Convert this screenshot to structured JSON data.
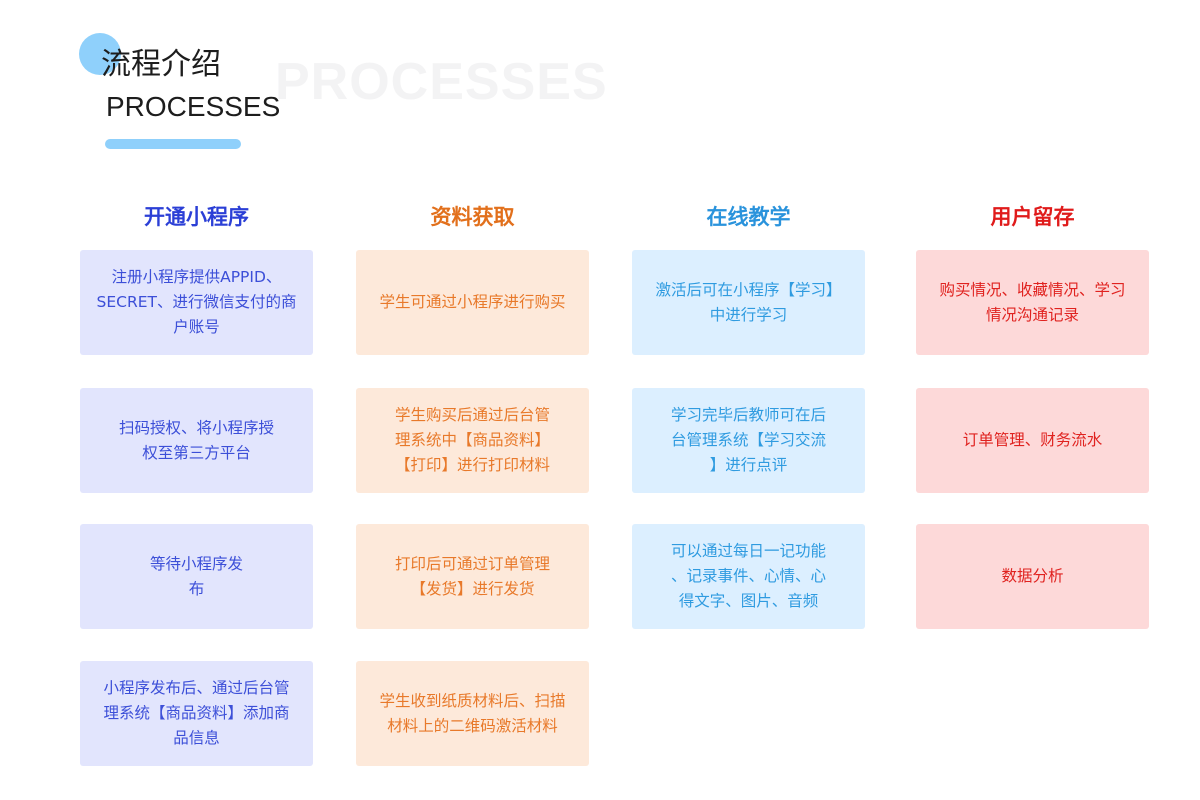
{
  "header": {
    "title_cn": "流程介绍",
    "title_en": "PROCESSES",
    "watermark": "PROCESSES",
    "accent_color": "#8fd0fb"
  },
  "columns": [
    {
      "title": "开通小程序",
      "title_color": "#2b3fd6",
      "text_color": "#3c4fd8",
      "bg_color": "#e2e5fd",
      "cards": [
        "注册小程序提供APPID、\nSECRET、进行微信支付的商\n户账号",
        "扫码授权、将小程序授\n权至第三方平台",
        "等待小程序发\n布",
        "小程序发布后、通过后台管\n理系统【商品资料】添加商\n品信息"
      ]
    },
    {
      "title": "资料获取",
      "title_color": "#e2701c",
      "text_color": "#e8792a",
      "bg_color": "#fde9da",
      "cards": [
        "学生可通过小程序进行购买",
        "学生购买后通过后台管\n理系统中【商品资料】\n【打印】进行打印材料",
        "打印后可通过订单管理\n【发货】进行发货",
        "学生收到纸质材料后、扫描\n材料上的二维码激活材料"
      ]
    },
    {
      "title": "在线教学",
      "title_color": "#2a93dc",
      "text_color": "#2f9be0",
      "bg_color": "#dcefff",
      "cards": [
        "激活后可在小程序【学习】\n中进行学习",
        "学习完毕后教师可在后\n台管理系统【学习交流\n】进行点评",
        "可以通过每日一记功能\n、记录事件、心情、心\n得文字、图片、音频"
      ]
    },
    {
      "title": "用户留存",
      "title_color": "#e01b1b",
      "text_color": "#e0221f",
      "bg_color": "#fdd9d9",
      "cards": [
        "购买情况、收藏情况、学习\n情况沟通记录",
        "订单管理、财务流水",
        "数据分析"
      ]
    }
  ]
}
